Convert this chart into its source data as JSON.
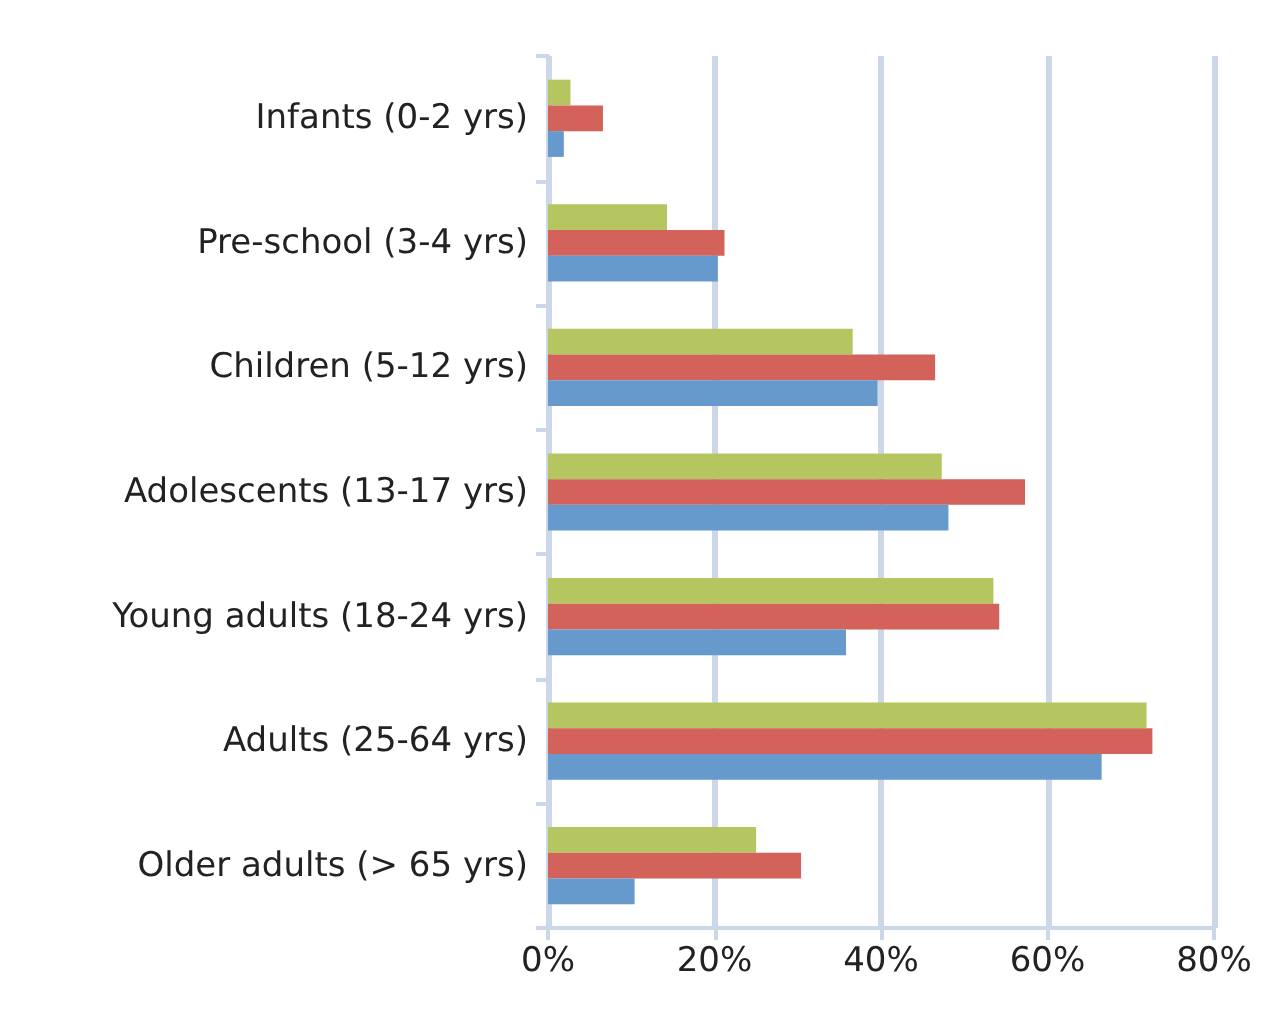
{
  "chart_data": {
    "type": "bar",
    "orientation": "horizontal",
    "categories": [
      "Infants (0-2 yrs)",
      "Pre-school (3-4 yrs)",
      "Children (5-12 yrs)",
      "Adolescents (13-17 yrs)",
      "Young adults (18-24 yrs)",
      "Adults (25-64 yrs)",
      "Older adults (> 65 yrs)"
    ],
    "series": [
      {
        "color": "#b5c660",
        "values": [
          2.7,
          14.3,
          36.6,
          47.3,
          53.5,
          71.9,
          25.0
        ]
      },
      {
        "color": "#d2625a",
        "values": [
          6.6,
          21.2,
          46.5,
          57.3,
          54.2,
          72.6,
          30.4
        ]
      },
      {
        "color": "#6699cc",
        "values": [
          1.9,
          20.4,
          39.6,
          48.1,
          35.8,
          66.5,
          10.4
        ]
      }
    ],
    "xlim": [
      0,
      80
    ],
    "xticks": [
      {
        "value": 0,
        "label": "0%"
      },
      {
        "value": 20,
        "label": "20%"
      },
      {
        "value": 40,
        "label": "40%"
      },
      {
        "value": 60,
        "label": "60%"
      },
      {
        "value": 80,
        "label": "80%"
      }
    ],
    "grid": "x"
  }
}
